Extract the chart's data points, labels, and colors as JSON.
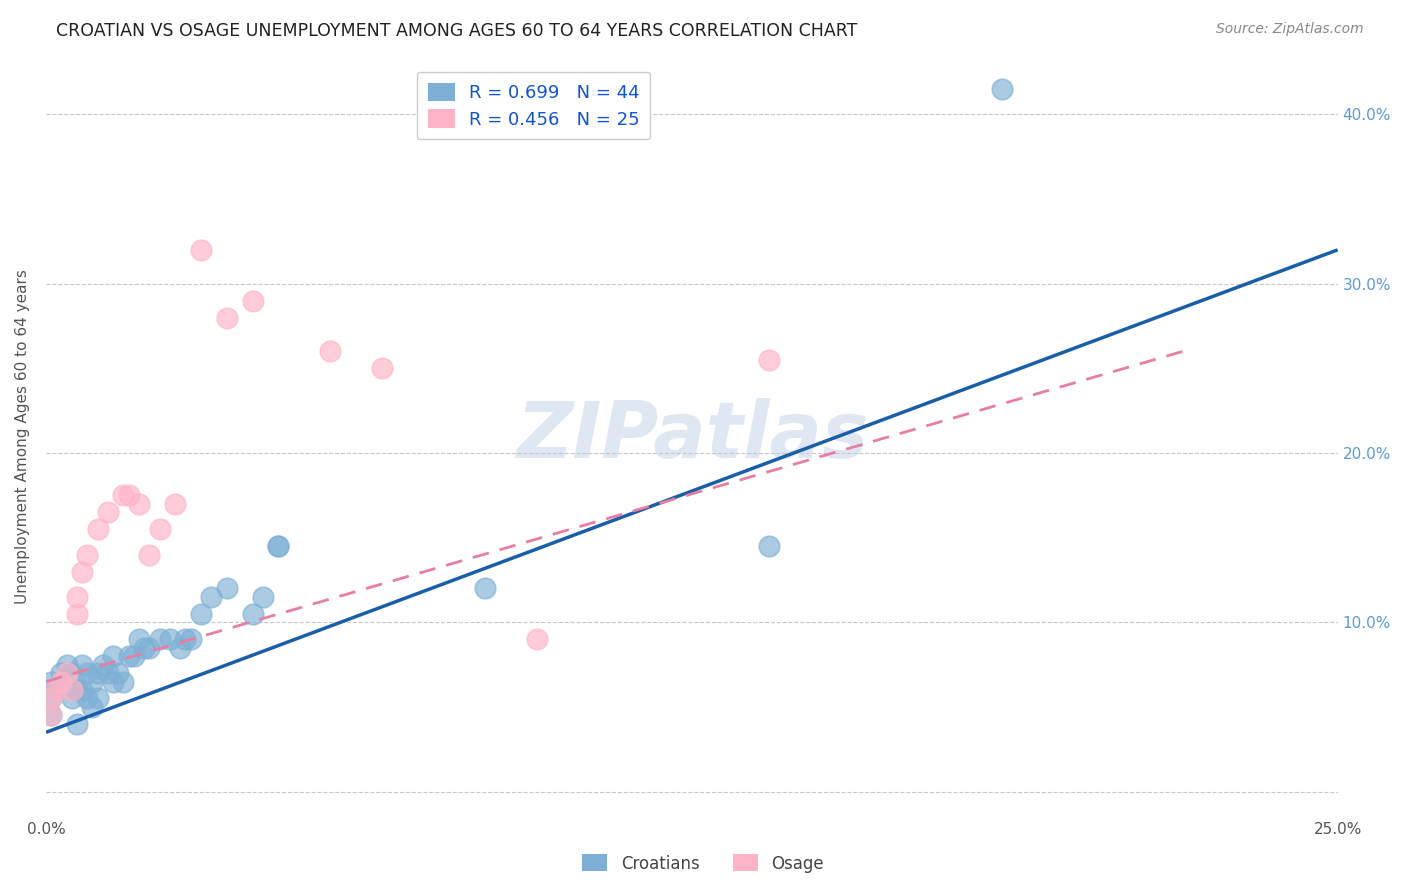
{
  "title": "CROATIAN VS OSAGE UNEMPLOYMENT AMONG AGES 60 TO 64 YEARS CORRELATION CHART",
  "source": "Source: ZipAtlas.com",
  "ylabel": "Unemployment Among Ages 60 to 64 years",
  "xlim": [
    0.0,
    0.25
  ],
  "ylim": [
    -0.015,
    0.435
  ],
  "xticks": [
    0.0,
    0.05,
    0.1,
    0.15,
    0.2,
    0.25
  ],
  "xticklabels": [
    "0.0%",
    "",
    "",
    "",
    "",
    "25.0%"
  ],
  "yticks_left": [
    0.0,
    0.1,
    0.2,
    0.3,
    0.4
  ],
  "yticklabels_left": [
    "",
    "",
    "",
    "",
    ""
  ],
  "yticks_right": [
    0.1,
    0.2,
    0.3,
    0.4
  ],
  "yticklabels_right": [
    "10.0%",
    "20.0%",
    "30.0%",
    "40.0%"
  ],
  "croatians_R": 0.699,
  "croatians_N": 44,
  "osage_R": 0.456,
  "osage_N": 25,
  "croatian_color": "#7EB0D5",
  "osage_color": "#FFB3C6",
  "trendline_croatian_color": "#1a5ea8",
  "trendline_osage_color": "#e87ea1",
  "background_color": "#FFFFFF",
  "watermark": "ZIPatlas",
  "croatians_x": [
    0.001,
    0.001,
    0.001,
    0.002,
    0.003,
    0.004,
    0.005,
    0.005,
    0.006,
    0.006,
    0.007,
    0.007,
    0.008,
    0.008,
    0.009,
    0.009,
    0.01,
    0.01,
    0.011,
    0.012,
    0.013,
    0.013,
    0.014,
    0.015,
    0.016,
    0.017,
    0.018,
    0.019,
    0.02,
    0.022,
    0.024,
    0.026,
    0.027,
    0.028,
    0.03,
    0.032,
    0.035,
    0.04,
    0.042,
    0.045,
    0.045,
    0.085,
    0.14,
    0.185
  ],
  "croatians_y": [
    0.045,
    0.055,
    0.065,
    0.06,
    0.07,
    0.075,
    0.055,
    0.07,
    0.04,
    0.06,
    0.06,
    0.075,
    0.055,
    0.07,
    0.05,
    0.065,
    0.055,
    0.07,
    0.075,
    0.07,
    0.065,
    0.08,
    0.07,
    0.065,
    0.08,
    0.08,
    0.09,
    0.085,
    0.085,
    0.09,
    0.09,
    0.085,
    0.09,
    0.09,
    0.105,
    0.115,
    0.12,
    0.105,
    0.115,
    0.145,
    0.145,
    0.12,
    0.145,
    0.415
  ],
  "osage_x": [
    0.001,
    0.001,
    0.002,
    0.003,
    0.004,
    0.005,
    0.006,
    0.006,
    0.007,
    0.008,
    0.01,
    0.012,
    0.015,
    0.016,
    0.018,
    0.02,
    0.022,
    0.025,
    0.03,
    0.035,
    0.04,
    0.055,
    0.065,
    0.095,
    0.14
  ],
  "osage_y": [
    0.045,
    0.055,
    0.06,
    0.065,
    0.07,
    0.06,
    0.105,
    0.115,
    0.13,
    0.14,
    0.155,
    0.165,
    0.175,
    0.175,
    0.17,
    0.14,
    0.155,
    0.17,
    0.32,
    0.28,
    0.29,
    0.26,
    0.25,
    0.09,
    0.255
  ],
  "trendline_c_x0": 0.0,
  "trendline_c_y0": 0.035,
  "trendline_c_x1": 0.25,
  "trendline_c_y1": 0.32,
  "trendline_o_x0": 0.0,
  "trendline_o_y0": 0.065,
  "trendline_o_x1": 0.22,
  "trendline_o_y1": 0.26
}
